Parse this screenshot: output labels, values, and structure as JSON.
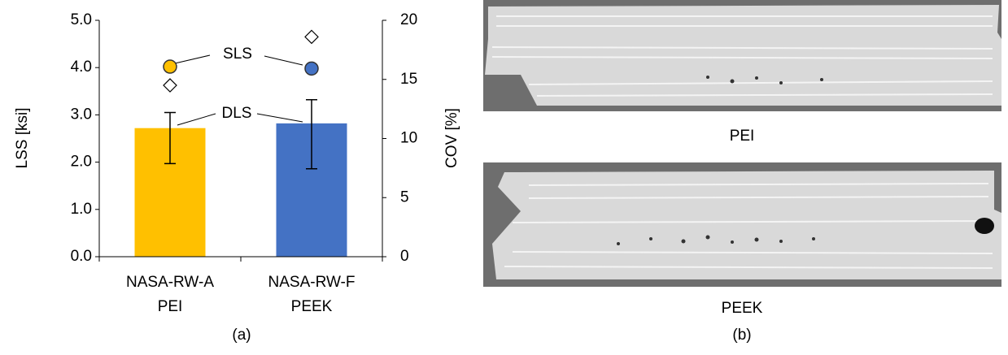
{
  "chart_data": {
    "type": "bar",
    "categories": [
      [
        "NASA-RW-A",
        "PEI"
      ],
      [
        "NASA-RW-F",
        "PEEK"
      ]
    ],
    "colors": [
      "#ffc000",
      "#4472c4"
    ],
    "series": [
      {
        "name": "DLS",
        "kind": "bar",
        "values": [
          2.72,
          2.82
        ],
        "err_low": [
          1.97,
          1.86
        ],
        "err_high": [
          3.05,
          3.32
        ]
      },
      {
        "name": "SLS",
        "kind": "circle",
        "values": [
          4.02,
          3.98
        ]
      },
      {
        "kind": "diamond",
        "axis": "y2",
        "values": [
          14.5,
          18.6
        ]
      }
    ],
    "ylabel": "LSS [ksi]",
    "y2label": "COV [%]",
    "ylim": [
      0,
      5
    ],
    "yticks": [
      {
        "value": 0,
        "label": "0.0"
      },
      {
        "value": 1,
        "label": "1.0"
      },
      {
        "value": 2,
        "label": "2.0"
      },
      {
        "value": 3,
        "label": "3.0"
      },
      {
        "value": 4,
        "label": "4.0"
      },
      {
        "value": 5,
        "label": "5.0"
      }
    ],
    "y2lim": [
      0,
      20
    ],
    "y2ticks": [
      0,
      5,
      10,
      15,
      20
    ],
    "panel_label": "(a)"
  },
  "micrographs": {
    "panel_label": "(b)",
    "captions": [
      "PEI",
      "PEEK"
    ]
  }
}
